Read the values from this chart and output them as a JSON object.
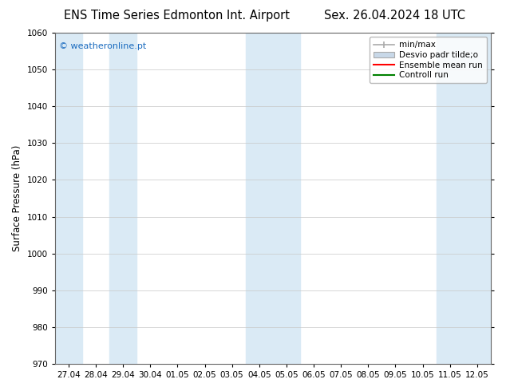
{
  "title_left": "ENS Time Series Edmonton Int. Airport",
  "title_right": "Sex. 26.04.2024 18 UTC",
  "ylabel": "Surface Pressure (hPa)",
  "ylim": [
    970,
    1060
  ],
  "yticks": [
    970,
    980,
    990,
    1000,
    1010,
    1020,
    1030,
    1040,
    1050,
    1060
  ],
  "xtick_labels": [
    "27.04",
    "28.04",
    "29.04",
    "30.04",
    "01.05",
    "02.05",
    "03.05",
    "04.05",
    "05.05",
    "06.05",
    "07.05",
    "08.05",
    "09.05",
    "10.05",
    "11.05",
    "12.05"
  ],
  "shaded_dates": [
    "27.04",
    "29.04",
    "04.05",
    "05.05",
    "11.05",
    "12.05"
  ],
  "shade_color": "#daeaf5",
  "watermark_text": "© weatheronline.pt",
  "watermark_color": "#1a6bbf",
  "background_color": "#ffffff",
  "plot_bg_color": "#ffffff",
  "grid_color": "#c8c8c8",
  "title_fontsize": 10.5,
  "tick_fontsize": 7.5,
  "ylabel_fontsize": 8.5,
  "legend_fontsize": 7.5
}
